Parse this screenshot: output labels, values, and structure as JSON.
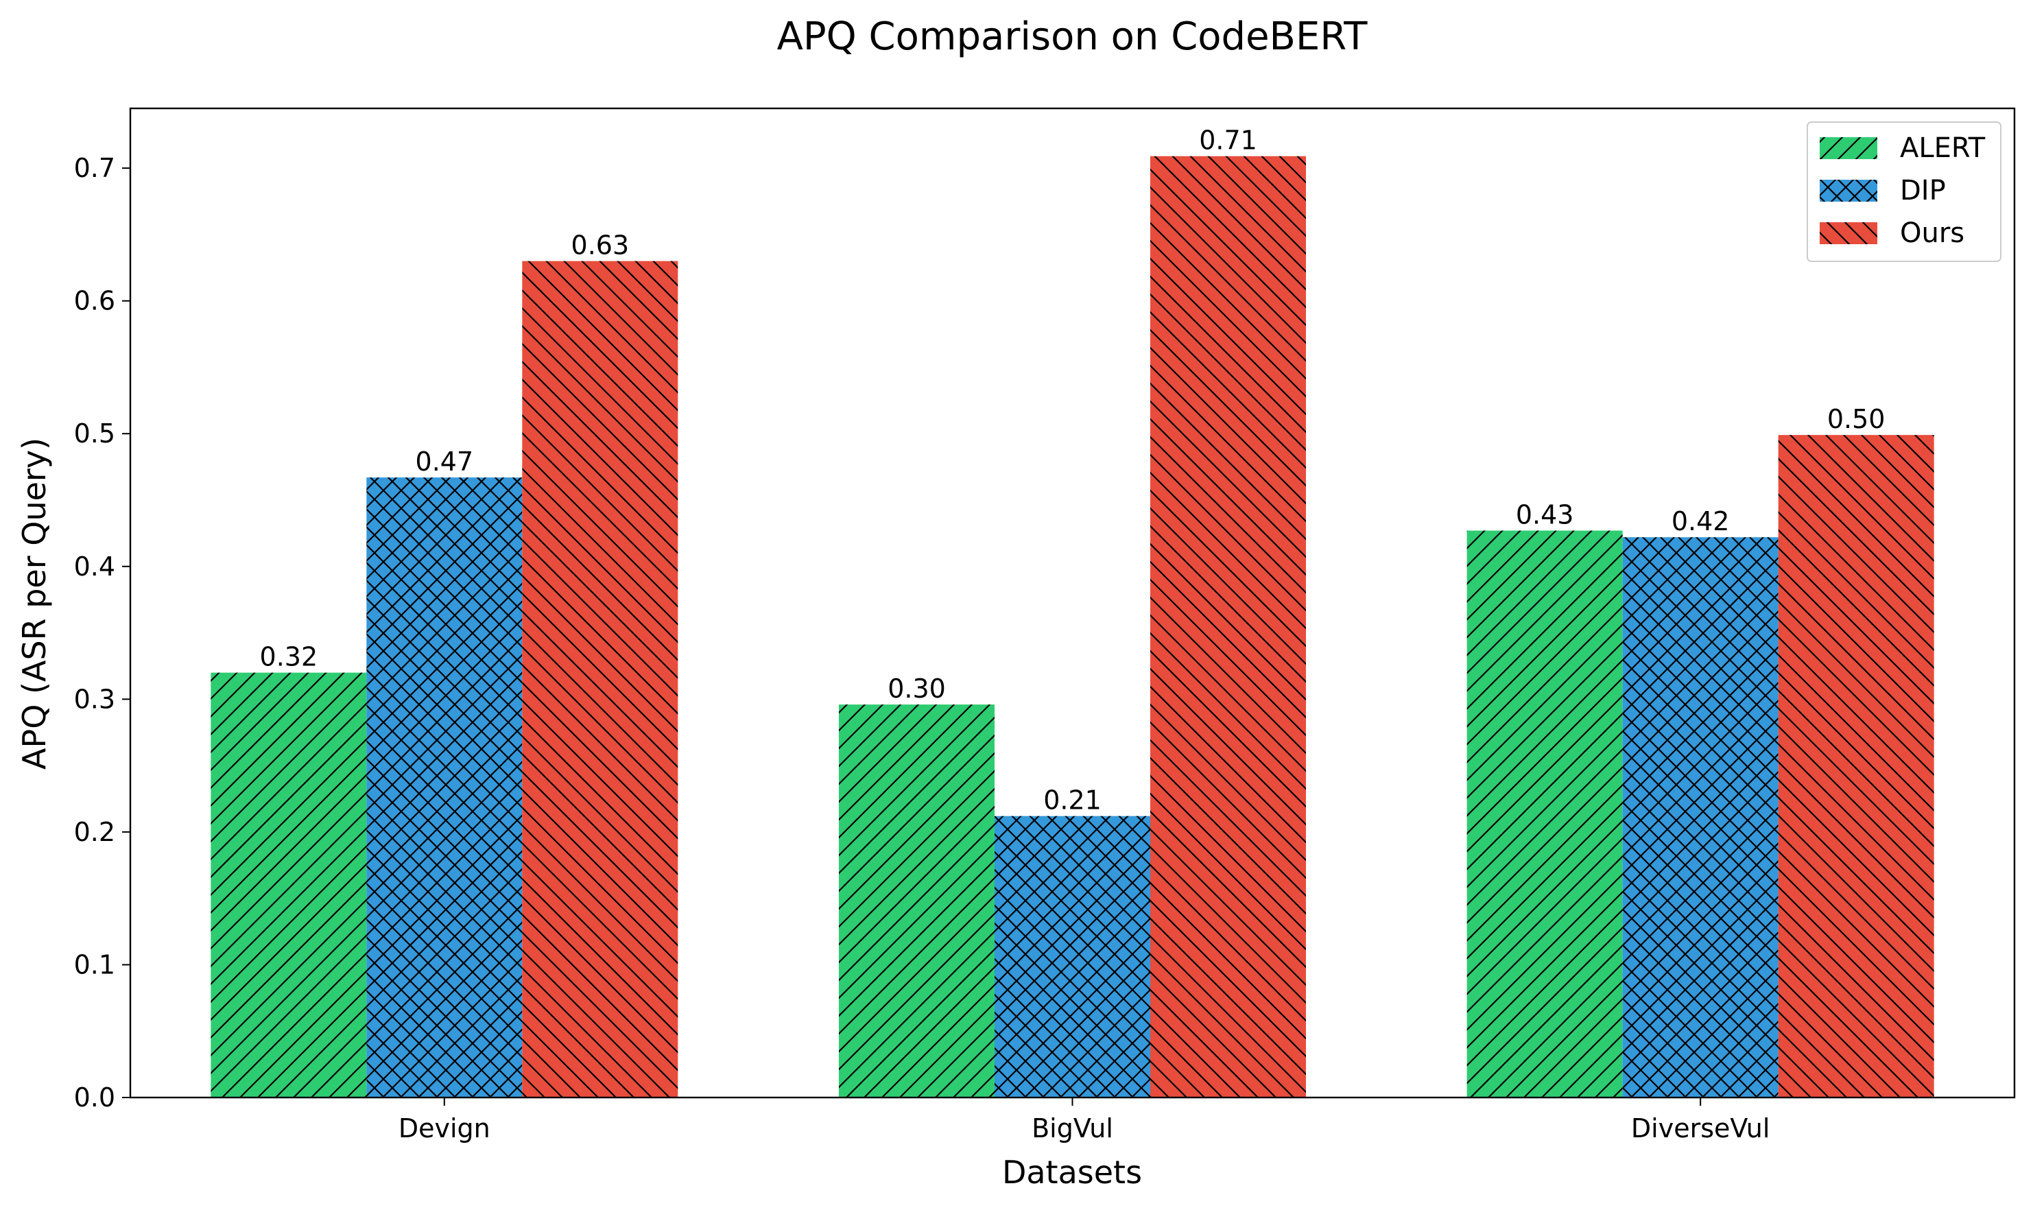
{
  "chart_data": {
    "type": "bar",
    "title": "APQ Comparison on CodeBERT",
    "xlabel": "Datasets",
    "ylabel": "APQ (ASR per Query)",
    "categories": [
      "Devign",
      "BigVul",
      "DiverseVul"
    ],
    "series": [
      {
        "name": "ALERT",
        "values": [
          0.32,
          0.296,
          0.427
        ],
        "labels": [
          "0.32",
          "0.30",
          "0.43"
        ],
        "color": "#2ecc71",
        "hatch": "forward-diagonal"
      },
      {
        "name": "DIP",
        "values": [
          0.467,
          0.212,
          0.422
        ],
        "labels": [
          "0.47",
          "0.21",
          "0.42"
        ],
        "color": "#3498db",
        "hatch": "cross"
      },
      {
        "name": "Ours",
        "values": [
          0.63,
          0.709,
          0.499
        ],
        "labels": [
          "0.63",
          "0.71",
          "0.50"
        ],
        "color": "#e74c3c",
        "hatch": "back-diagonal"
      }
    ],
    "ylim": [
      0,
      0.745
    ],
    "yticks": [
      0.0,
      0.1,
      0.2,
      0.3,
      0.4,
      0.5,
      0.6,
      0.7
    ],
    "ytick_labels": [
      "0.0",
      "0.1",
      "0.2",
      "0.3",
      "0.4",
      "0.5",
      "0.6",
      "0.7"
    ],
    "grid": false,
    "legend_position": "top-right"
  }
}
